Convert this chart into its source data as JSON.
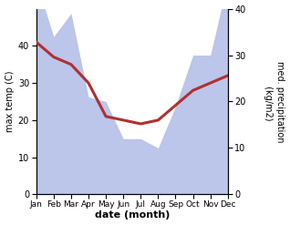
{
  "months": [
    "Jan",
    "Feb",
    "Mar",
    "Apr",
    "May",
    "Jun",
    "Jul",
    "Aug",
    "Sep",
    "Oct",
    "Nov",
    "Dec"
  ],
  "max_temp": [
    41,
    37,
    35,
    30,
    21,
    20,
    19,
    20,
    24,
    28,
    30,
    32
  ],
  "precipitation": [
    46,
    34,
    39,
    21,
    20,
    12,
    12,
    10,
    19,
    30,
    30,
    46
  ],
  "temp_color": "#b03030",
  "precip_fill_color": "#bcc5ea",
  "temp_ylim": [
    0,
    50
  ],
  "precip_ylim": [
    0,
    40
  ],
  "temp_yticks": [
    0,
    10,
    20,
    30,
    40
  ],
  "precip_yticks": [
    0,
    10,
    20,
    30,
    40
  ],
  "xlabel": "date (month)",
  "ylabel_left": "max temp (C)",
  "ylabel_right": "med. precipitation\n (kg/m2)",
  "bg_color": "#ffffff",
  "linewidth": 2.2,
  "figsize": [
    3.18,
    2.47
  ],
  "dpi": 100
}
